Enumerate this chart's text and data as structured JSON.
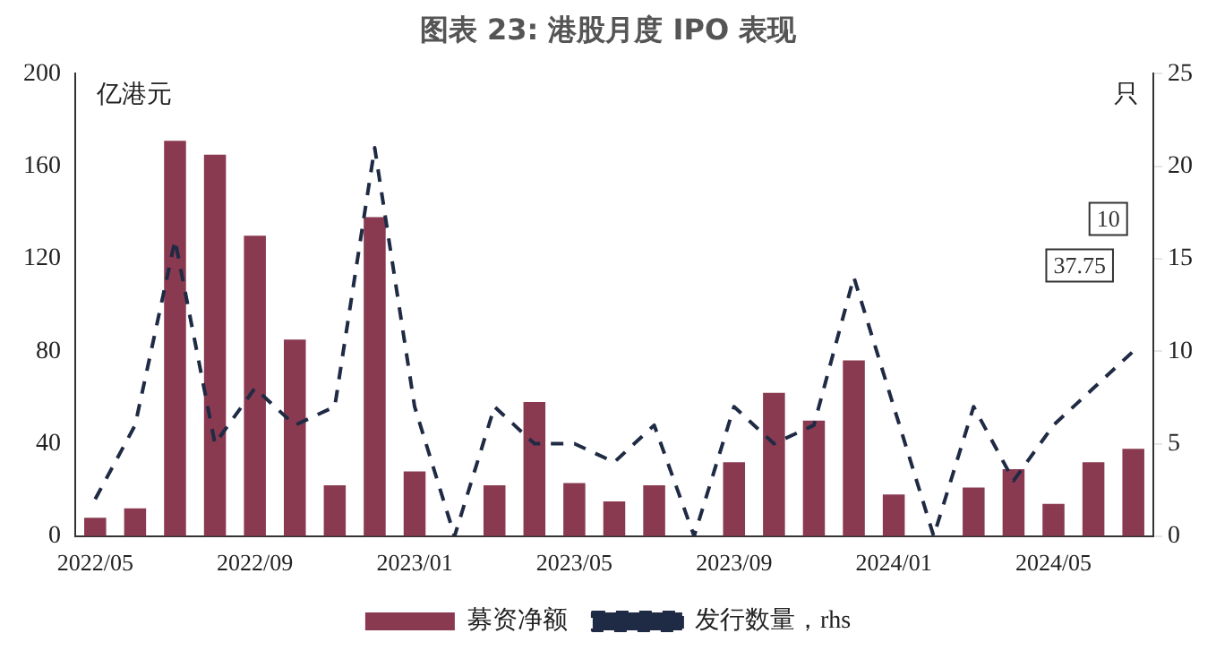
{
  "chart_data": {
    "type": "bar",
    "title": "图表 23: 港股月度 IPO 表现",
    "ylabel": "亿港元",
    "y2label": "只",
    "categories": [
      "2022/05",
      null,
      null,
      null,
      "2022/09",
      null,
      null,
      null,
      "2023/01",
      null,
      null,
      null,
      "2023/05",
      null,
      null,
      null,
      "2023/09",
      null,
      null,
      null,
      "2024/01",
      null,
      null,
      null,
      "2024/05",
      null,
      null
    ],
    "series": [
      {
        "name": "募资净额",
        "color": "#8a3a50",
        "values": [
          8,
          12,
          171,
          165,
          130,
          85,
          22,
          138,
          28,
          0,
          22,
          58,
          23,
          15,
          22,
          0,
          32,
          62,
          50,
          76,
          18,
          0,
          21,
          29,
          14,
          32,
          37.75
        ]
      },
      {
        "name": "发行数量，rhs",
        "type": "line",
        "axis": "y2",
        "color": "#1f2a44",
        "line_style": "dashed",
        "marker": "none",
        "values": [
          2,
          6,
          16,
          5,
          8,
          6,
          7,
          21,
          7,
          0,
          7,
          5,
          5,
          4,
          6,
          0,
          7,
          5,
          6,
          14,
          7,
          0,
          7,
          3,
          6,
          8,
          10
        ]
      }
    ],
    "ylim": [
      0,
      200
    ],
    "yticks": [
      0,
      40,
      80,
      120,
      160,
      200
    ],
    "y2lim": [
      0,
      25
    ],
    "y2ticks": [
      0,
      5,
      10,
      15,
      20,
      25
    ],
    "annotations": [
      "37.75",
      "10"
    ],
    "grid": false,
    "legend": "bottom"
  }
}
